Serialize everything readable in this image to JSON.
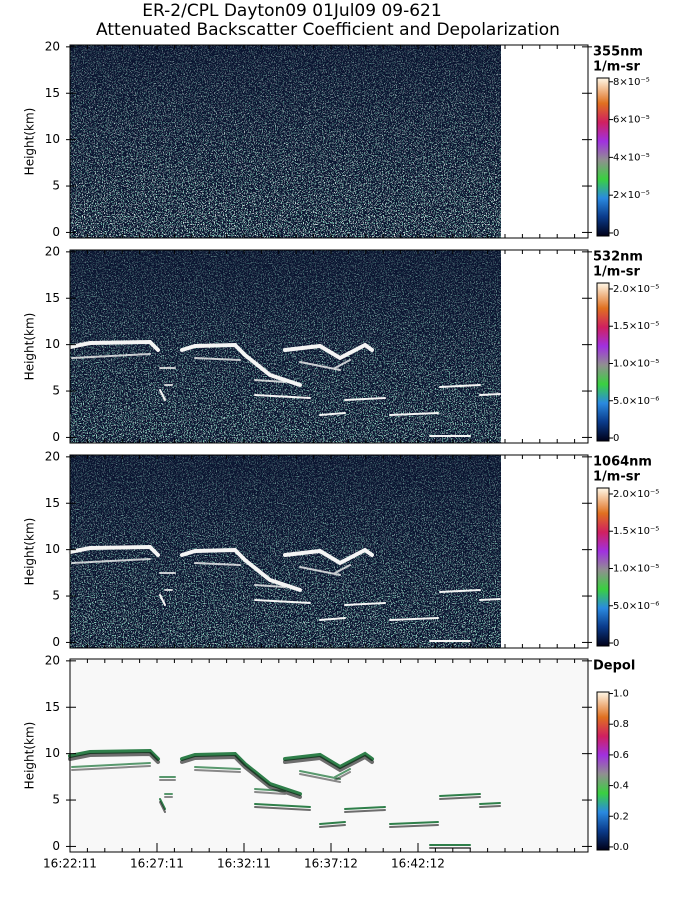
{
  "title": "ER-2/CPL Dayton09 01Jul09 09-621",
  "subtitle": "Attenuated Backscatter Coefficient and Depolarization",
  "chart_data": [
    {
      "type": "heatmap",
      "ylabel": "Height(km)",
      "ylim": [
        -0.6,
        20.2
      ],
      "yticks": [
        0,
        5,
        10,
        15,
        20
      ],
      "colorbar_label": [
        "355nm",
        "1/m-sr"
      ],
      "clim": [
        -1.6e-06,
        8.2e-05
      ],
      "cticks": [
        0,
        {
          "value": 2e-05,
          "label": "2×10⁻⁵"
        },
        {
          "value": 4e-05,
          "label": "4×10⁻⁵"
        },
        {
          "value": 6e-05,
          "label": "6×10⁻⁵"
        },
        {
          "value": 8e-05,
          "label": "8×10⁻⁵"
        }
      ]
    },
    {
      "type": "heatmap",
      "ylabel": "Height(km)",
      "ylim": [
        -0.6,
        20.2
      ],
      "yticks": [
        0,
        5,
        10,
        15,
        20
      ],
      "colorbar_label": [
        "532nm",
        "1/m-sr"
      ],
      "clim": [
        -4e-07,
        2.08e-05
      ],
      "cticks": [
        0,
        {
          "value": 5e-06,
          "label": "5.0×10⁻⁶"
        },
        {
          "value": 1e-05,
          "label": "1.0×10⁻⁵"
        },
        {
          "value": 1.5e-05,
          "label": "1.5×10⁻⁵"
        },
        {
          "value": 2e-05,
          "label": "2.0×10⁻⁵"
        }
      ]
    },
    {
      "type": "heatmap",
      "ylabel": "Height(km)",
      "ylim": [
        -0.6,
        20.2
      ],
      "yticks": [
        0,
        5,
        10,
        15,
        20
      ],
      "colorbar_label": [
        "1064nm",
        "1/m-sr"
      ],
      "clim": [
        -4e-07,
        2.08e-05
      ],
      "cticks": [
        0,
        {
          "value": 5e-06,
          "label": "5.0×10⁻⁶"
        },
        {
          "value": 1e-05,
          "label": "1.0×10⁻⁵"
        },
        {
          "value": 1.5e-05,
          "label": "1.5×10⁻⁵"
        },
        {
          "value": 2e-05,
          "label": "2.0×10⁻⁵"
        }
      ]
    },
    {
      "type": "heatmap",
      "ylabel": "Height(km)",
      "ylim": [
        -0.6,
        20.2
      ],
      "yticks": [
        0,
        5,
        10,
        15,
        20
      ],
      "colorbar_label": [
        "Depol"
      ],
      "clim": [
        -0.02,
        1.01
      ],
      "cticks": [
        {
          "value": 0,
          "label": "0.0"
        },
        {
          "value": 0.2,
          "label": "0.2"
        },
        {
          "value": 0.4,
          "label": "0.4"
        },
        {
          "value": 0.6,
          "label": "0.6"
        },
        {
          "value": 0.8,
          "label": "0.8"
        },
        {
          "value": 1,
          "label": "1.0"
        }
      ],
      "xticks": [
        "16:22:11",
        "16:27:11",
        "16:32:11",
        "16:37:12",
        "16:42:12"
      ]
    }
  ]
}
